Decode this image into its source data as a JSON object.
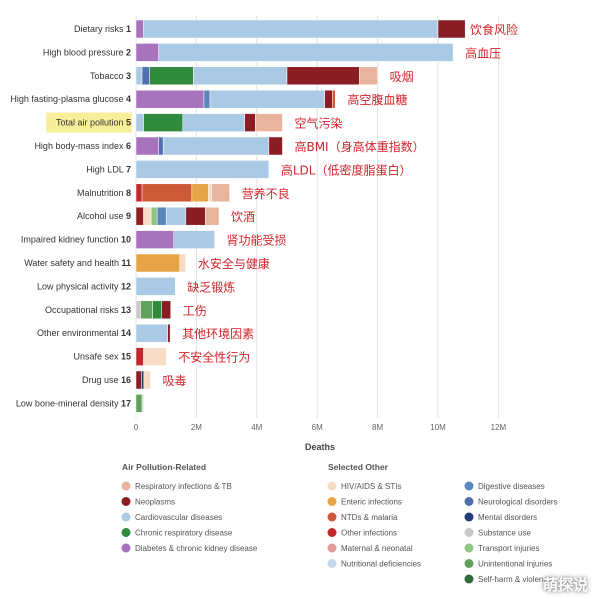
{
  "chart_data": {
    "type": "bar",
    "orientation": "horizontal",
    "stacked": true,
    "xlabel": "Deaths",
    "x_ticks": [
      "0",
      "2M",
      "4M",
      "6M",
      "8M",
      "10M",
      "12M"
    ],
    "xlim": [
      0,
      12000000
    ],
    "highlighted": "Total air pollution",
    "categories": [
      {
        "rank": "1",
        "label": "Dietary risks",
        "zh": "饮食风险"
      },
      {
        "rank": "2",
        "label": "High blood pressure",
        "zh": "高血压"
      },
      {
        "rank": "3",
        "label": "Tobacco",
        "zh": "吸烟"
      },
      {
        "rank": "4",
        "label": "High fasting-plasma glucose",
        "zh": "高空腹血糖"
      },
      {
        "rank": "5",
        "label": "Total air pollution",
        "zh": "空气污染"
      },
      {
        "rank": "6",
        "label": "High body-mass index",
        "zh": "高BMI（身高体重指数）"
      },
      {
        "rank": "7",
        "label": "High LDL",
        "zh": "高LDL（低密度脂蛋白）"
      },
      {
        "rank": "8",
        "label": "Malnutrition",
        "zh": "营养不良"
      },
      {
        "rank": "9",
        "label": "Alcohol use",
        "zh": "饮酒"
      },
      {
        "rank": "10",
        "label": "Impaired kidney function",
        "zh": "肾功能受损"
      },
      {
        "rank": "11",
        "label": "Water safety and health",
        "zh": "水安全与健康"
      },
      {
        "rank": "12",
        "label": "Low physical activity",
        "zh": "缺乏锻炼"
      },
      {
        "rank": "13",
        "label": "Occupational risks",
        "zh": "工伤"
      },
      {
        "rank": "14",
        "label": "Other environmental",
        "zh": "其他环境因素"
      },
      {
        "rank": "15",
        "label": "Unsafe sex",
        "zh": "不安全性行为"
      },
      {
        "rank": "16",
        "label": "Drug use",
        "zh": "吸毒"
      },
      {
        "rank": "17",
        "label": "Low bone-mineral density",
        "zh": ""
      }
    ],
    "colors": {
      "respiratory": "#e8b49e",
      "neoplasms": "#8b1d24",
      "cardiovascular": "#a9c9e4",
      "chronic_resp": "#2f8a3e",
      "diabetes_ckd": "#a873bd",
      "hiv": "#f6dcc5",
      "enteric": "#e7a447",
      "ntds": "#cc5a36",
      "other_inf": "#c1272d",
      "maternal": "#e59a9a",
      "nutritional": "#c4d8ec",
      "digestive": "#5a85bf",
      "neuro": "#4f6fae",
      "mental": "#223c79",
      "substance": "#c9c9c9",
      "transport": "#8fc484",
      "unintentional": "#5fa05a",
      "selfharm": "#2f6b3a"
    },
    "rows": [
      [
        {
          "c": "diabetes_ckd",
          "v": 0.25
        },
        {
          "c": "cardiovascular",
          "v": 9.75
        },
        {
          "c": "neoplasms",
          "v": 0.9
        }
      ],
      [
        {
          "c": "diabetes_ckd",
          "v": 0.75
        },
        {
          "c": "cardiovascular",
          "v": 9.75
        }
      ],
      [
        {
          "c": "cardiovascular",
          "v": 0.2
        },
        {
          "c": "neuro",
          "v": 0.25
        },
        {
          "c": "chronic_resp",
          "v": 1.45
        },
        {
          "c": "cardiovascular",
          "v": 3.1
        },
        {
          "c": "neoplasms",
          "v": 2.4
        },
        {
          "c": "respiratory",
          "v": 0.6
        }
      ],
      [
        {
          "c": "diabetes_ckd",
          "v": 2.25
        },
        {
          "c": "digestive",
          "v": 0.2
        },
        {
          "c": "cardiovascular",
          "v": 3.8
        },
        {
          "c": "neoplasms",
          "v": 0.25
        },
        {
          "c": "ntds",
          "v": 0.1
        }
      ],
      [
        {
          "c": "cardiovascular",
          "v": 0.25
        },
        {
          "c": "chronic_resp",
          "v": 1.3
        },
        {
          "c": "cardiovascular",
          "v": 2.05
        },
        {
          "c": "neoplasms",
          "v": 0.35
        },
        {
          "c": "respiratory",
          "v": 0.9
        }
      ],
      [
        {
          "c": "diabetes_ckd",
          "v": 0.75
        },
        {
          "c": "neuro",
          "v": 0.15
        },
        {
          "c": "cardiovascular",
          "v": 3.5
        },
        {
          "c": "neoplasms",
          "v": 0.45
        }
      ],
      [
        {
          "c": "cardiovascular",
          "v": 4.4
        }
      ],
      [
        {
          "c": "other_inf",
          "v": 0.2
        },
        {
          "c": "ntds",
          "v": 1.65
        },
        {
          "c": "enteric",
          "v": 0.55
        },
        {
          "c": "hiv",
          "v": 0.1
        },
        {
          "c": "respiratory",
          "v": 0.6
        }
      ],
      [
        {
          "c": "neoplasms",
          "v": 0.25
        },
        {
          "c": "hiv",
          "v": 0.25
        },
        {
          "c": "transport",
          "v": 0.2
        },
        {
          "c": "digestive",
          "v": 0.3
        },
        {
          "c": "cardiovascular",
          "v": 0.65
        },
        {
          "c": "neoplasms",
          "v": 0.65
        },
        {
          "c": "respiratory",
          "v": 0.45
        }
      ],
      [
        {
          "c": "diabetes_ckd",
          "v": 1.25
        },
        {
          "c": "cardiovascular",
          "v": 1.35
        }
      ],
      [
        {
          "c": "enteric",
          "v": 1.45
        },
        {
          "c": "hiv",
          "v": 0.2
        }
      ],
      [
        {
          "c": "cardiovascular",
          "v": 1.3
        }
      ],
      [
        {
          "c": "substance",
          "v": 0.15
        },
        {
          "c": "unintentional",
          "v": 0.4
        },
        {
          "c": "chronic_resp",
          "v": 0.3
        },
        {
          "c": "neoplasms",
          "v": 0.3
        }
      ],
      [
        {
          "c": "cardiovascular",
          "v": 1.05
        },
        {
          "c": "neoplasms",
          "v": 0.08
        }
      ],
      [
        {
          "c": "other_inf",
          "v": 0.25
        },
        {
          "c": "hiv",
          "v": 0.75
        }
      ],
      [
        {
          "c": "neoplasms",
          "v": 0.18
        },
        {
          "c": "mental",
          "v": 0.08
        },
        {
          "c": "hiv",
          "v": 0.22
        }
      ],
      [
        {
          "c": "unintentional",
          "v": 0.2
        },
        {
          "c": "substance",
          "v": 0.05
        }
      ]
    ]
  },
  "legend": {
    "air_heading": "Air Pollution-Related",
    "other_heading": "Selected Other",
    "air_items": [
      {
        "key": "respiratory",
        "label": "Respiratory infections & TB"
      },
      {
        "key": "neoplasms",
        "label": "Neoplasms"
      },
      {
        "key": "cardiovascular",
        "label": "Cardiovascular diseases"
      },
      {
        "key": "chronic_resp",
        "label": "Chronic respiratory disease"
      },
      {
        "key": "diabetes_ckd",
        "label": "Diabetes & chronic kidney disease"
      }
    ],
    "other_col1": [
      {
        "key": "hiv",
        "label": "HIV/AIDS & STIs"
      },
      {
        "key": "enteric",
        "label": "Enteric infections"
      },
      {
        "key": "ntds",
        "label": "NTDs & malaria"
      },
      {
        "key": "other_inf",
        "label": "Other infections"
      },
      {
        "key": "maternal",
        "label": "Maternal & neonatal"
      },
      {
        "key": "nutritional",
        "label": "Nutritional deficiencies"
      }
    ],
    "other_col2": [
      {
        "key": "digestive",
        "label": "Digestive diseases"
      },
      {
        "key": "neuro",
        "label": "Neurological disorders"
      },
      {
        "key": "mental",
        "label": "Mental disorders"
      },
      {
        "key": "substance",
        "label": "Substance use"
      },
      {
        "key": "transport",
        "label": "Transport injuries"
      },
      {
        "key": "unintentional",
        "label": "Unintentional injuries"
      },
      {
        "key": "selfharm",
        "label": "Self-harm & violence"
      }
    ]
  },
  "watermark": "萌探说"
}
